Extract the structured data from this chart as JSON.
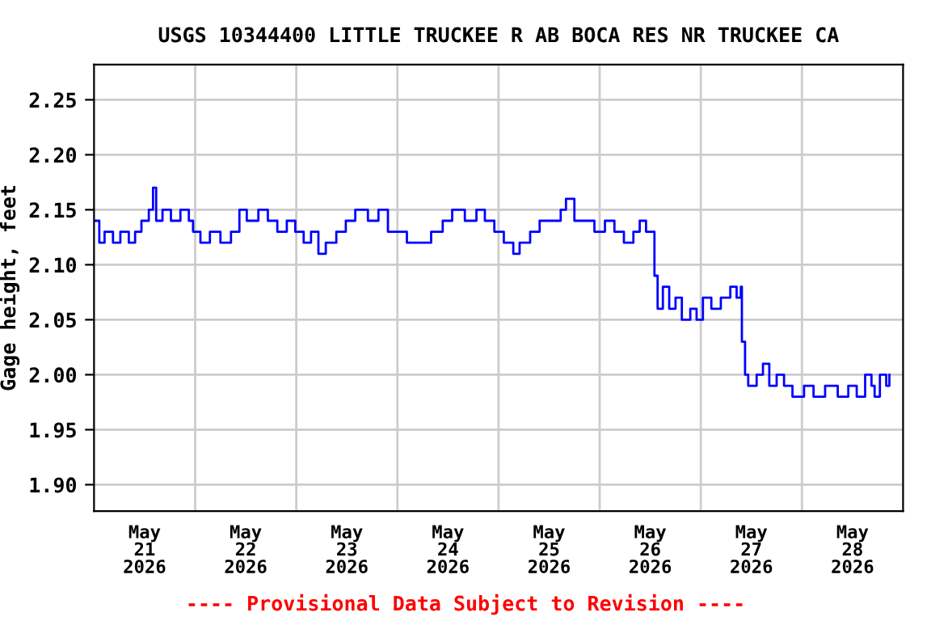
{
  "chart_data": {
    "type": "step",
    "title": "USGS 10344400 LITTLE TRUCKEE R AB BOCA RES NR TRUCKEE CA",
    "ylabel": "Gage height, feet",
    "annotations": [
      "---- Provisional Data Subject to Revision ----"
    ],
    "grid": true,
    "marker": "none",
    "line_style": "solid",
    "xlim": [
      "2026-05-21T00:00",
      "2026-05-29T00:00"
    ],
    "xticks": [
      {
        "value": "2026-05-21T12:00",
        "label": "May\n21\n2026"
      },
      {
        "value": "2026-05-22T12:00",
        "label": "May\n22\n2026"
      },
      {
        "value": "2026-05-23T12:00",
        "label": "May\n23\n2026"
      },
      {
        "value": "2026-05-24T12:00",
        "label": "May\n24\n2026"
      },
      {
        "value": "2026-05-25T12:00",
        "label": "May\n25\n2026"
      },
      {
        "value": "2026-05-26T12:00",
        "label": "May\n26\n2026"
      },
      {
        "value": "2026-05-27T12:00",
        "label": "May\n27\n2026"
      },
      {
        "value": "2026-05-28T12:00",
        "label": "May\n28\n2026"
      },
      {
        "value": "2026-05-22T00:00",
        "label": null
      },
      {
        "value": "2026-05-23T00:00",
        "label": null
      },
      {
        "value": "2026-05-24T00:00",
        "label": null
      },
      {
        "value": "2026-05-25T00:00",
        "label": null
      },
      {
        "value": "2026-05-26T00:00",
        "label": null
      },
      {
        "value": "2026-05-27T00:00",
        "label": null
      },
      {
        "value": "2026-05-28T00:00",
        "label": null
      }
    ],
    "ylim": [
      1.876,
      2.282
    ],
    "yticks": [
      {
        "value": 1.9,
        "label": "1.90"
      },
      {
        "value": 1.95,
        "label": "1.95"
      },
      {
        "value": 2.0,
        "label": "2.00"
      },
      {
        "value": 2.05,
        "label": "2.05"
      },
      {
        "value": 2.1,
        "label": "2.10"
      },
      {
        "value": 2.15,
        "label": "2.15"
      },
      {
        "value": 2.2,
        "label": "2.20"
      },
      {
        "value": 2.25,
        "label": "2.25"
      }
    ],
    "series": [
      {
        "color": "#0000ff",
        "x": [
          "2026-05-21T00:15",
          "2026-05-21T01:15",
          "2026-05-21T02:30",
          "2026-05-21T04:30",
          "2026-05-21T06:15",
          "2026-05-21T08:15",
          "2026-05-21T09:45",
          "2026-05-21T11:15",
          "2026-05-21T13:00",
          "2026-05-21T14:00",
          "2026-05-21T14:45",
          "2026-05-21T16:15",
          "2026-05-21T18:15",
          "2026-05-21T20:30",
          "2026-05-21T22:30",
          "2026-05-21T23:30",
          "2026-05-22T01:15",
          "2026-05-22T03:30",
          "2026-05-22T06:00",
          "2026-05-22T08:30",
          "2026-05-22T10:30",
          "2026-05-22T12:15",
          "2026-05-22T15:00",
          "2026-05-22T17:15",
          "2026-05-22T19:30",
          "2026-05-22T21:45",
          "2026-05-22T23:45",
          "2026-05-23T01:45",
          "2026-05-23T03:30",
          "2026-05-23T05:15",
          "2026-05-23T07:00",
          "2026-05-23T09:30",
          "2026-05-23T11:45",
          "2026-05-23T14:00",
          "2026-05-23T17:00",
          "2026-05-23T19:30",
          "2026-05-23T21:45",
          "2026-05-24T00:30",
          "2026-05-24T02:15",
          "2026-05-24T05:30",
          "2026-05-24T08:00",
          "2026-05-24T10:45",
          "2026-05-24T13:00",
          "2026-05-24T16:00",
          "2026-05-24T18:45",
          "2026-05-24T20:45",
          "2026-05-24T23:00",
          "2026-05-25T01:15",
          "2026-05-25T03:30",
          "2026-05-25T05:00",
          "2026-05-25T07:30",
          "2026-05-25T09:45",
          "2026-05-25T12:00",
          "2026-05-25T14:45",
          "2026-05-25T16:00",
          "2026-05-25T18:00",
          "2026-05-25T20:30",
          "2026-05-25T22:45",
          "2026-05-26T01:15",
          "2026-05-26T03:30",
          "2026-05-26T05:45",
          "2026-05-26T08:00",
          "2026-05-26T09:30",
          "2026-05-26T11:00",
          "2026-05-26T12:45",
          "2026-05-26T13:00",
          "2026-05-26T13:45",
          "2026-05-26T15:00",
          "2026-05-26T16:30",
          "2026-05-26T18:00",
          "2026-05-26T19:30",
          "2026-05-26T21:30",
          "2026-05-26T23:00",
          "2026-05-27T00:30",
          "2026-05-27T02:30",
          "2026-05-27T04:45",
          "2026-05-27T07:00",
          "2026-05-27T08:30",
          "2026-05-27T09:30",
          "2026-05-27T09:45",
          "2026-05-27T10:30",
          "2026-05-27T11:15",
          "2026-05-27T13:15",
          "2026-05-27T14:45",
          "2026-05-27T16:15",
          "2026-05-27T18:00",
          "2026-05-27T19:45",
          "2026-05-27T21:45",
          "2026-05-28T00:30",
          "2026-05-28T02:45",
          "2026-05-28T05:30",
          "2026-05-28T08:30",
          "2026-05-28T11:00",
          "2026-05-28T13:00",
          "2026-05-28T15:00",
          "2026-05-28T16:30",
          "2026-05-28T17:15",
          "2026-05-28T18:30",
          "2026-05-28T20:00",
          "2026-05-28T20:45"
        ],
        "values": [
          2.14,
          2.12,
          2.13,
          2.12,
          2.13,
          2.12,
          2.13,
          2.14,
          2.15,
          2.17,
          2.14,
          2.15,
          2.14,
          2.15,
          2.14,
          2.13,
          2.12,
          2.13,
          2.12,
          2.13,
          2.15,
          2.14,
          2.15,
          2.14,
          2.13,
          2.14,
          2.13,
          2.12,
          2.13,
          2.11,
          2.12,
          2.13,
          2.14,
          2.15,
          2.14,
          2.15,
          2.13,
          2.13,
          2.12,
          2.12,
          2.13,
          2.14,
          2.15,
          2.14,
          2.15,
          2.14,
          2.13,
          2.12,
          2.11,
          2.12,
          2.13,
          2.14,
          2.14,
          2.15,
          2.16,
          2.14,
          2.14,
          2.13,
          2.14,
          2.13,
          2.12,
          2.13,
          2.14,
          2.13,
          2.13,
          2.09,
          2.06,
          2.08,
          2.06,
          2.07,
          2.05,
          2.06,
          2.05,
          2.07,
          2.06,
          2.07,
          2.08,
          2.07,
          2.08,
          2.03,
          2.0,
          1.99,
          2.0,
          2.01,
          1.99,
          2.0,
          1.99,
          1.98,
          1.99,
          1.98,
          1.99,
          1.98,
          1.99,
          1.98,
          2.0,
          1.99,
          1.98,
          2.0,
          1.99,
          2.0
        ]
      }
    ]
  }
}
